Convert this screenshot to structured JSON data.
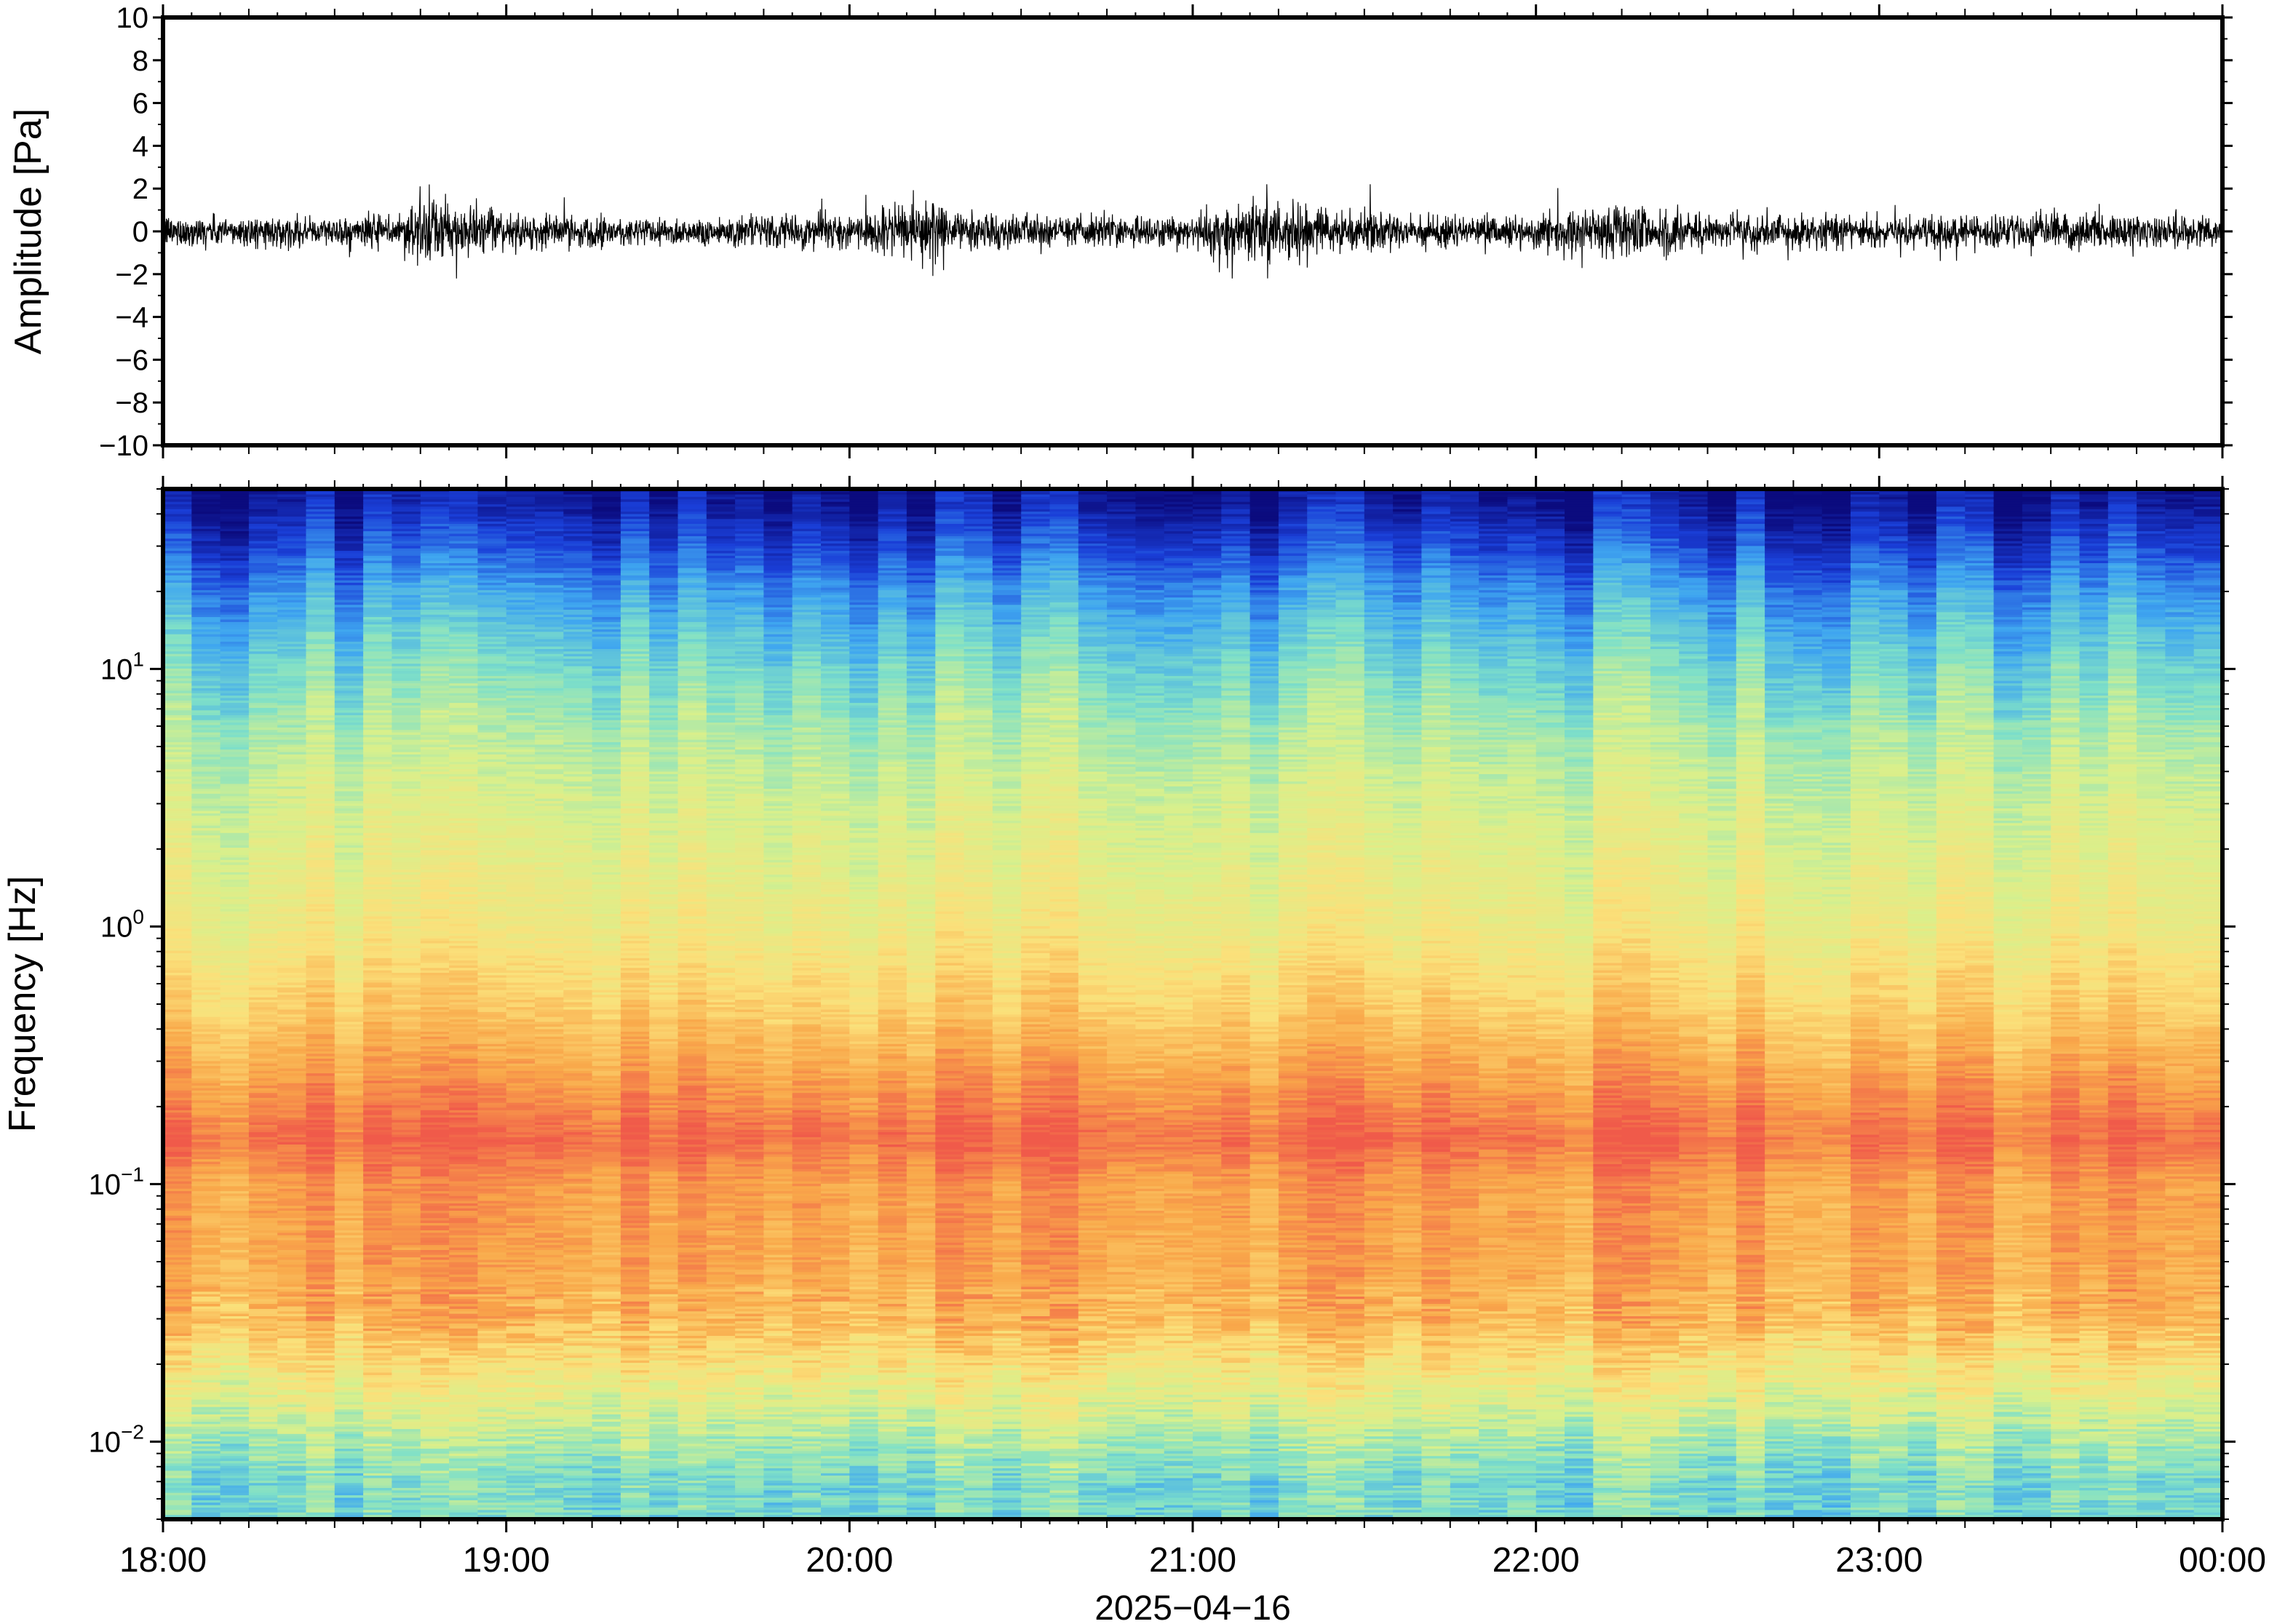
{
  "chart_data": [
    {
      "type": "line",
      "ylabel": "Amplitude [Pa]",
      "xlabel": "",
      "ylim": [
        -10,
        10
      ],
      "yticks": [
        10,
        8,
        6,
        4,
        2,
        0,
        -2,
        -4,
        -6,
        -8,
        -10
      ],
      "ytick_labels": [
        "10",
        "8",
        "6",
        "4",
        "2",
        "0",
        "−2",
        "−4",
        "−6",
        "−8",
        "−10"
      ],
      "xlim": [
        "18:00",
        "00:00"
      ],
      "series": [
        {
          "color": "#000000",
          "envelope_hours": [
            0.0,
            0.5,
            0.7,
            0.72,
            1.0,
            1.5,
            2.0,
            2.15,
            2.25,
            2.3,
            2.5,
            3.0,
            3.15,
            3.5,
            4.0,
            4.3,
            4.5,
            5.0,
            5.5,
            6.0
          ],
          "envelope_pa": [
            0.8,
            0.7,
            0.9,
            1.8,
            0.9,
            0.7,
            0.9,
            1.2,
            2.0,
            1.0,
            0.8,
            0.8,
            1.8,
            0.9,
            0.8,
            1.5,
            0.9,
            0.8,
            0.9,
            0.8
          ]
        }
      ]
    },
    {
      "type": "heatmap",
      "ylabel": "Frequency [Hz]",
      "xlabel": "2025−04−16",
      "y_scale": "log",
      "ylim": [
        0.005,
        50
      ],
      "yticks": [
        10,
        1,
        0.1,
        0.01
      ],
      "ytick_labels": [
        {
          "base": "10",
          "exp": "1"
        },
        {
          "base": "10",
          "exp": "0"
        },
        {
          "base": "10",
          "exp": "−1"
        },
        {
          "base": "10",
          "exp": "−2"
        }
      ],
      "xticks": [
        "18:00",
        "19:00",
        "20:00",
        "21:00",
        "22:00",
        "23:00",
        "00:00"
      ],
      "colormap": "spectral (dark blue low power → red high power)",
      "colors": [
        "#0b0b7e",
        "#1a3fd8",
        "#3fa6f0",
        "#7fe0c8",
        "#d8f08c",
        "#fbe07a",
        "#f9a84a",
        "#f05a4a"
      ],
      "freq_hz": [
        0.007,
        0.01,
        0.015,
        0.03,
        0.05,
        0.1,
        0.15,
        0.25,
        0.5,
        1,
        3,
        6,
        10,
        20,
        30,
        45
      ],
      "relative_power": [
        0.42,
        0.5,
        0.62,
        0.82,
        0.86,
        0.88,
        0.97,
        0.88,
        0.76,
        0.66,
        0.58,
        0.5,
        0.42,
        0.28,
        0.16,
        0.05
      ]
    }
  ]
}
